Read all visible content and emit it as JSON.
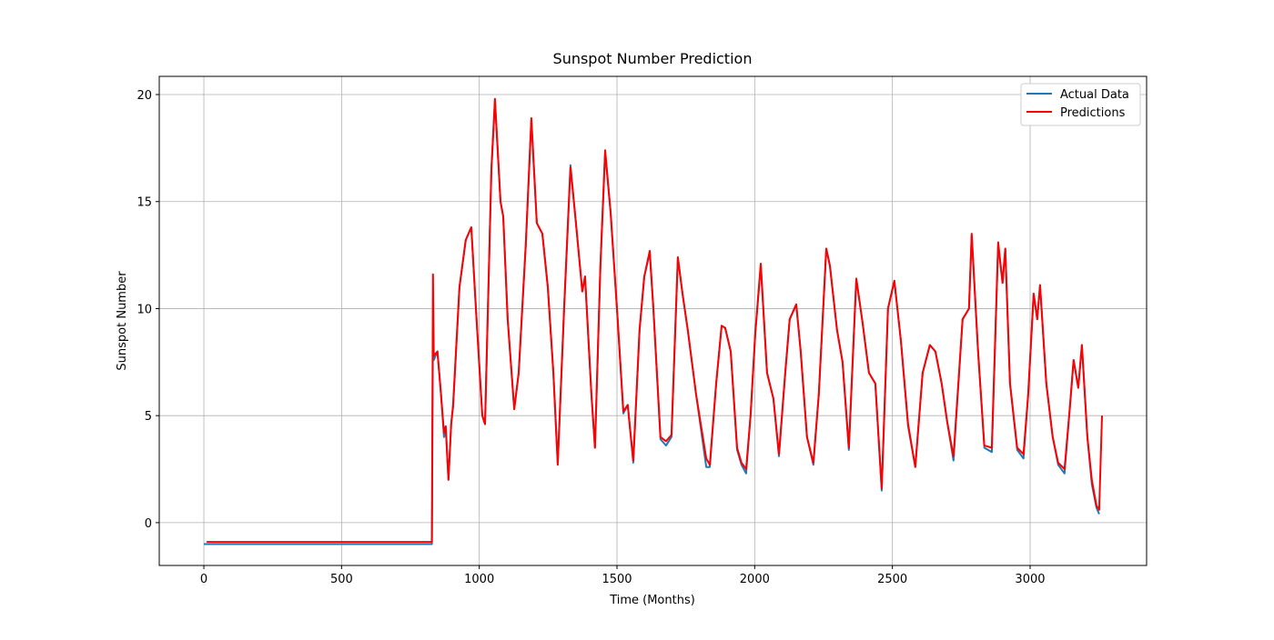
{
  "chart_data": {
    "type": "line",
    "title": "Sunspot Number Prediction",
    "xlabel": "Time (Months)",
    "ylabel": "Sunspot Number",
    "x": [
      0,
      10,
      828,
      832,
      835,
      848,
      861,
      872,
      878,
      888,
      898,
      905,
      928,
      951,
      971,
      988,
      1011,
      1021,
      1044,
      1057,
      1077,
      1087,
      1103,
      1127,
      1143,
      1169,
      1189,
      1209,
      1229,
      1249,
      1269,
      1285,
      1308,
      1331,
      1351,
      1374,
      1384,
      1407,
      1420,
      1440,
      1457,
      1477,
      1500,
      1523,
      1539,
      1559,
      1582,
      1599,
      1619,
      1632,
      1658,
      1678,
      1698,
      1721,
      1738,
      1757,
      1787,
      1824,
      1837,
      1860,
      1880,
      1893,
      1913,
      1936,
      1952,
      1969,
      1985,
      2002,
      2022,
      2045,
      2068,
      2088,
      2111,
      2127,
      2151,
      2167,
      2190,
      2213,
      2233,
      2260,
      2273,
      2299,
      2319,
      2342,
      2369,
      2392,
      2415,
      2438,
      2461,
      2484,
      2507,
      2531,
      2557,
      2583,
      2610,
      2636,
      2656,
      2679,
      2699,
      2722,
      2755,
      2778,
      2788,
      2811,
      2834,
      2861,
      2884,
      2900,
      2910,
      2927,
      2953,
      2976,
      2993,
      3013,
      3026,
      3036,
      3059,
      3082,
      3102,
      3125,
      3145,
      3158,
      3175,
      3188,
      3208,
      3224,
      3241,
      3251,
      3261
    ],
    "series": [
      {
        "name": "Actual Data",
        "color": "#1f77b4",
        "values": [
          -1,
          -1,
          -1,
          9,
          7.6,
          8,
          6,
          4,
          4.5,
          2,
          4.6,
          5.4,
          11,
          13.2,
          13.8,
          10,
          5,
          4.6,
          16.5,
          19.7,
          15,
          14.3,
          9.5,
          5.3,
          7,
          13,
          18.8,
          14,
          13.5,
          11,
          7,
          2.8,
          10,
          16.7,
          14,
          10.8,
          11.5,
          6,
          3.5,
          12,
          17.3,
          14.5,
          10,
          5.1,
          5.5,
          2.8,
          9,
          11.5,
          12.6,
          10,
          3.9,
          3.6,
          4,
          12.4,
          10.7,
          9,
          6,
          2.6,
          2.6,
          6.5,
          9.2,
          9.1,
          8,
          3.4,
          2.7,
          2.3,
          5,
          8.8,
          12,
          7,
          5.8,
          3.1,
          7,
          9.5,
          10.2,
          8,
          4,
          2.7,
          6,
          12.8,
          12,
          9,
          7.5,
          3.4,
          11.4,
          9.3,
          7,
          6.5,
          1.5,
          10,
          11.3,
          8.5,
          4.5,
          2.6,
          7,
          8.3,
          8,
          6.5,
          4.7,
          2.9,
          9.5,
          10,
          13.4,
          8,
          3.5,
          3.3,
          13,
          11.2,
          12.8,
          6.5,
          3.4,
          3,
          6,
          10.7,
          9.5,
          11.1,
          6.5,
          4,
          2.7,
          2.3,
          5.5,
          7.6,
          6.3,
          8.3,
          4,
          1.8,
          0.7,
          0.4,
          null
        ]
      },
      {
        "name": "Predictions",
        "color": "#ff0000",
        "values": [
          null,
          -0.9,
          -0.9,
          11.6,
          7.8,
          8,
          6,
          4.2,
          4.5,
          2,
          4.6,
          5.5,
          11,
          13.2,
          13.8,
          10,
          5,
          4.6,
          16.5,
          19.8,
          15,
          14.3,
          9.5,
          5.3,
          7,
          13,
          18.9,
          14,
          13.5,
          11,
          7,
          2.7,
          10,
          16.6,
          14,
          10.8,
          11.5,
          6,
          3.5,
          12,
          17.4,
          14.5,
          10,
          5.2,
          5.5,
          2.9,
          9,
          11.5,
          12.7,
          10,
          4,
          3.8,
          4.1,
          12.4,
          10.7,
          9,
          6,
          3,
          2.7,
          6.5,
          9.2,
          9.1,
          8,
          3.5,
          2.8,
          2.5,
          5,
          8.8,
          12.1,
          7,
          5.8,
          3.2,
          7,
          9.5,
          10.2,
          8,
          4,
          2.8,
          6,
          12.8,
          12,
          9,
          7.5,
          3.5,
          11.4,
          9.3,
          7,
          6.5,
          1.6,
          10,
          11.3,
          8.5,
          4.6,
          2.6,
          7,
          8.3,
          8,
          6.5,
          4.7,
          3.1,
          9.5,
          10,
          13.5,
          8,
          3.6,
          3.5,
          13.1,
          11.2,
          12.8,
          6.5,
          3.5,
          3.2,
          6,
          10.7,
          9.5,
          11.1,
          6.5,
          4,
          2.8,
          2.5,
          5.5,
          7.6,
          6.3,
          8.3,
          4,
          2,
          0.8,
          0.6,
          5
        ]
      }
    ],
    "xlim": [
      -162,
      3423
    ],
    "ylim": [
      -2,
      20.85
    ],
    "xticks": [
      0,
      500,
      1000,
      1500,
      2000,
      2500,
      3000
    ],
    "yticks": [
      0,
      5,
      10,
      15,
      20
    ],
    "grid": true,
    "legend": "upper right"
  }
}
